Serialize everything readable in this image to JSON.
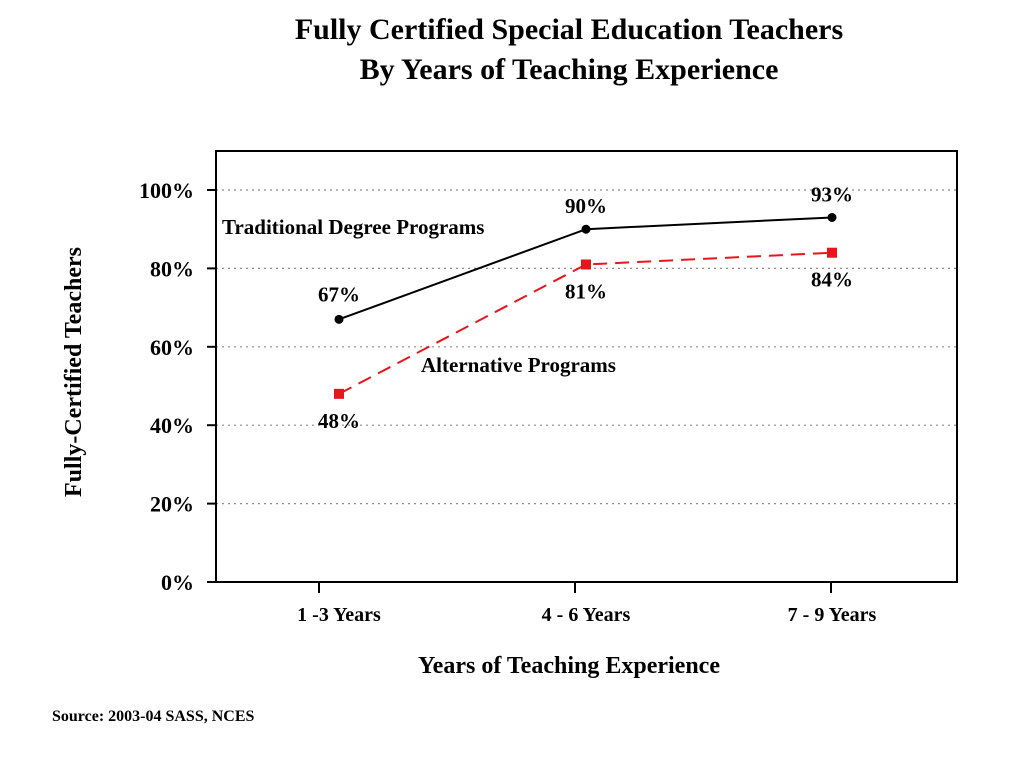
{
  "title_line1": "Fully Certified Special Education Teachers",
  "title_line2": "By Years of Teaching Experience",
  "source": "Source: 2003-04 SASS, NCES",
  "chart_data": {
    "type": "line",
    "x": [
      "1 -3 Years",
      "4 - 6 Years",
      "7 - 9 Years"
    ],
    "xlabel": "Years of Teaching Experience",
    "ylabel": "Fully-Certified Teachers",
    "ylim": [
      0,
      100
    ],
    "yticks": [
      0,
      20,
      40,
      60,
      80,
      100
    ],
    "ytick_labels": [
      "0%",
      "20%",
      "40%",
      "60%",
      "80%",
      "100%"
    ],
    "grid": "horizontal dotted",
    "series": [
      {
        "name": "Traditional Degree Programs",
        "values": [
          67,
          90,
          93
        ],
        "labels": [
          "67%",
          "90%",
          "93%"
        ],
        "color": "#000000",
        "style": "solid",
        "marker": "circle"
      },
      {
        "name": "Alternative Programs",
        "values": [
          48,
          81,
          84
        ],
        "labels": [
          "48%",
          "81%",
          "84%"
        ],
        "color": "#e8161c",
        "style": "dashed",
        "marker": "square"
      }
    ]
  }
}
